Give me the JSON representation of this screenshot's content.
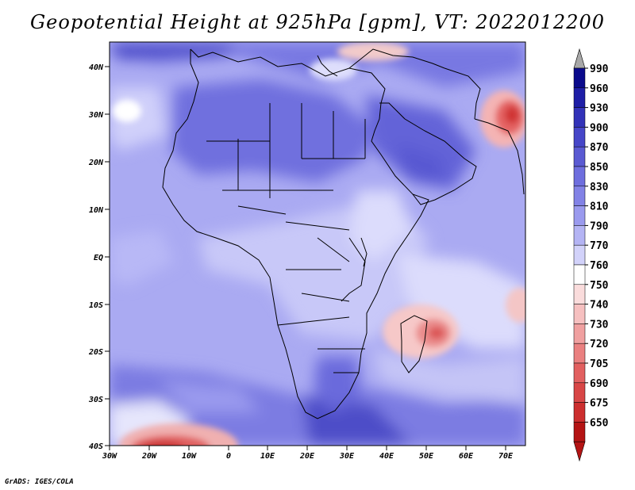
{
  "title": "Geopotential Height at 925hPa [gpm], VT: 2022012200",
  "credit": "GrADS: IGES/COLA",
  "map": {
    "type": "filled-contour-map",
    "variable": "Geopotential Height",
    "level": "925hPa",
    "units": "gpm",
    "valid_time": "2022012200",
    "lon_range": [
      -30,
      75
    ],
    "lat_range": [
      -40,
      45
    ],
    "lon_ticks": [
      "30W",
      "20W",
      "10W",
      "0",
      "10E",
      "20E",
      "30E",
      "40E",
      "50E",
      "60E",
      "70E"
    ],
    "lat_ticks": [
      "40N",
      "30N",
      "20N",
      "10N",
      "EQ",
      "10S",
      "20S",
      "30S",
      "40S"
    ]
  },
  "colorbar": {
    "labels": [
      "990",
      "960",
      "930",
      "900",
      "870",
      "850",
      "830",
      "810",
      "790",
      "770",
      "760",
      "750",
      "740",
      "730",
      "720",
      "705",
      "690",
      "675",
      "650"
    ],
    "colors": [
      "#0a0a8c",
      "#1e1ea6",
      "#3232b8",
      "#4646c8",
      "#5a5ad2",
      "#6e6ede",
      "#8282e6",
      "#9a9aee",
      "#b4b4f4",
      "#d2d2fa",
      "#ffffff",
      "#fadcdc",
      "#f6c0c0",
      "#f0a0a0",
      "#ea8080",
      "#e26060",
      "#d84646",
      "#cc2e2e",
      "#b41414"
    ],
    "top_arrow_color": "#a8a8a8",
    "bottom_arrow_color": "#b41414"
  }
}
